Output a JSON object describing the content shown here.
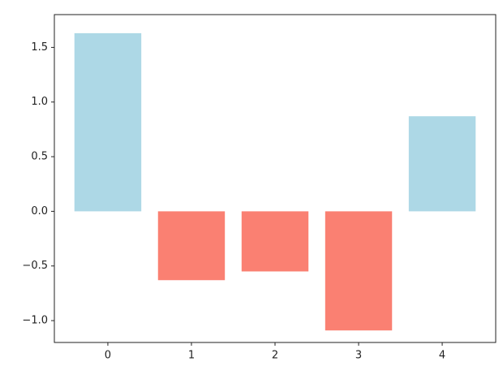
{
  "chart_data": {
    "type": "bar",
    "x": [
      0,
      1,
      2,
      3,
      4
    ],
    "values": [
      1.63,
      -0.63,
      -0.55,
      -1.09,
      0.87
    ],
    "colors": [
      "#add8e6",
      "#fa8072",
      "#fa8072",
      "#fa8072",
      "#add8e6"
    ],
    "xlim": [
      -0.64,
      4.64
    ],
    "xticks": [
      0,
      1,
      2,
      3,
      4
    ],
    "ylim": [
      -1.2,
      1.8
    ],
    "yticks": [
      {
        "value": -1.0,
        "label": "−1.0"
      },
      {
        "value": -0.5,
        "label": "−0.5"
      },
      {
        "value": 0.0,
        "label": "0.0"
      },
      {
        "value": 0.5,
        "label": "0.5"
      },
      {
        "value": 1.0,
        "label": "1.0"
      },
      {
        "value": 1.5,
        "label": "1.5"
      }
    ],
    "grid": false
  }
}
